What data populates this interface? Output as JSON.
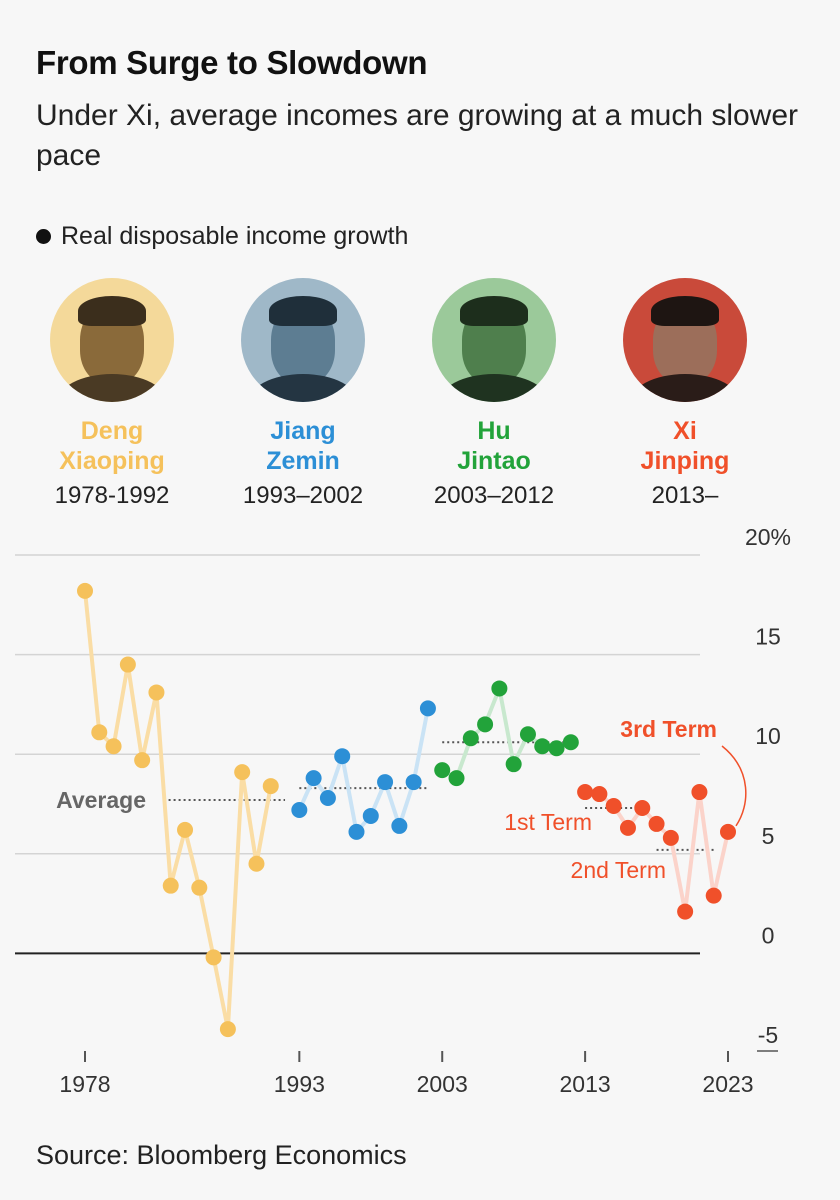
{
  "title": "From Surge to Slowdown",
  "subtitle": "Under Xi, average incomes are growing at a much slower pace",
  "legend": {
    "label": "Real disposable income growth"
  },
  "leaders": [
    {
      "first": "Deng",
      "last": "Xiaoping",
      "years": "1978-1992",
      "color": "#f5c15b"
    },
    {
      "first": "Jiang",
      "last": "Zemin",
      "years": "1993–2002",
      "color": "#2c8fd6"
    },
    {
      "first": "Hu",
      "last": "Jintao",
      "years": "2003–2012",
      "color": "#22a33a"
    },
    {
      "first": "Xi",
      "last": "Jinping",
      "years": "2013–",
      "color": "#f0502a"
    }
  ],
  "source": "Source: Bloomberg Economics",
  "chart_data": {
    "type": "line",
    "title": "From Surge to Slowdown",
    "xlabel": "",
    "ylabel": "Real disposable income growth",
    "xlim": [
      1978,
      2023
    ],
    "ylim": [
      -5,
      20
    ],
    "y_ticks": [
      20,
      15,
      10,
      5,
      0,
      -5
    ],
    "y_tick_labels": [
      "20%",
      "15",
      "10",
      "5",
      "0",
      "-5"
    ],
    "x_ticks": [
      1978,
      1993,
      2003,
      2013,
      2023
    ],
    "x_tick_labels": [
      "1978",
      "1993",
      "2003",
      "2013",
      "2023"
    ],
    "series": [
      {
        "name": "Deng Xiaoping",
        "color": "#f5c15b",
        "x": [
          1978,
          1979,
          1980,
          1981,
          1982,
          1983,
          1984,
          1985,
          1986,
          1987,
          1988,
          1989,
          1990,
          1991,
          1992
        ],
        "values": [
          18.2,
          11.1,
          10.4,
          14.5,
          9.7,
          13.1,
          3.4,
          6.2,
          3.3,
          -0.2,
          -3.8,
          9.1,
          4.5,
          8.4,
          null
        ]
      },
      {
        "name": "Jiang Zemin",
        "color": "#2c8fd6",
        "x": [
          1993,
          1994,
          1995,
          1996,
          1997,
          1998,
          1999,
          2000,
          2001,
          2002
        ],
        "values": [
          7.2,
          8.8,
          7.8,
          9.9,
          6.1,
          6.9,
          8.6,
          6.4,
          8.6,
          12.3
        ]
      },
      {
        "name": "Hu Jintao",
        "color": "#22a33a",
        "x": [
          2003,
          2004,
          2005,
          2006,
          2007,
          2008,
          2009,
          2010,
          2011,
          2012
        ],
        "values": [
          9.2,
          8.8,
          10.8,
          11.5,
          13.3,
          9.5,
          11.0,
          10.4,
          10.3,
          10.6
        ]
      },
      {
        "name": "Xi Jinping",
        "color": "#f0502a",
        "x": [
          2013,
          2014,
          2015,
          2016,
          2017,
          2018,
          2019,
          2020,
          2021,
          2022,
          2023
        ],
        "values": [
          8.1,
          8.0,
          7.4,
          6.3,
          7.3,
          6.5,
          5.8,
          2.1,
          8.1,
          2.9,
          6.1
        ]
      }
    ],
    "average_lines": [
      {
        "label": "Average",
        "x_start": 1983.5,
        "x_end": 1992,
        "y": 7.7,
        "color": "#555555"
      },
      {
        "label": "",
        "x_start": 1993,
        "x_end": 2002,
        "y": 8.3,
        "color": "#555555"
      },
      {
        "label": "",
        "x_start": 2003,
        "x_end": 2012,
        "y": 10.6,
        "color": "#555555"
      },
      {
        "label": "1st Term",
        "x_start": 2013,
        "x_end": 2017,
        "y": 7.3,
        "color": "#555555"
      },
      {
        "label": "2nd Term",
        "x_start": 2018,
        "x_end": 2022,
        "y": 5.2,
        "color": "#555555"
      }
    ],
    "annotations": [
      {
        "text": "Average",
        "color": "#666666"
      },
      {
        "text": "1st Term",
        "color": "#f0502a"
      },
      {
        "text": "2nd Term",
        "color": "#f0502a"
      },
      {
        "text": "3rd Term",
        "color": "#f0502a"
      }
    ]
  }
}
